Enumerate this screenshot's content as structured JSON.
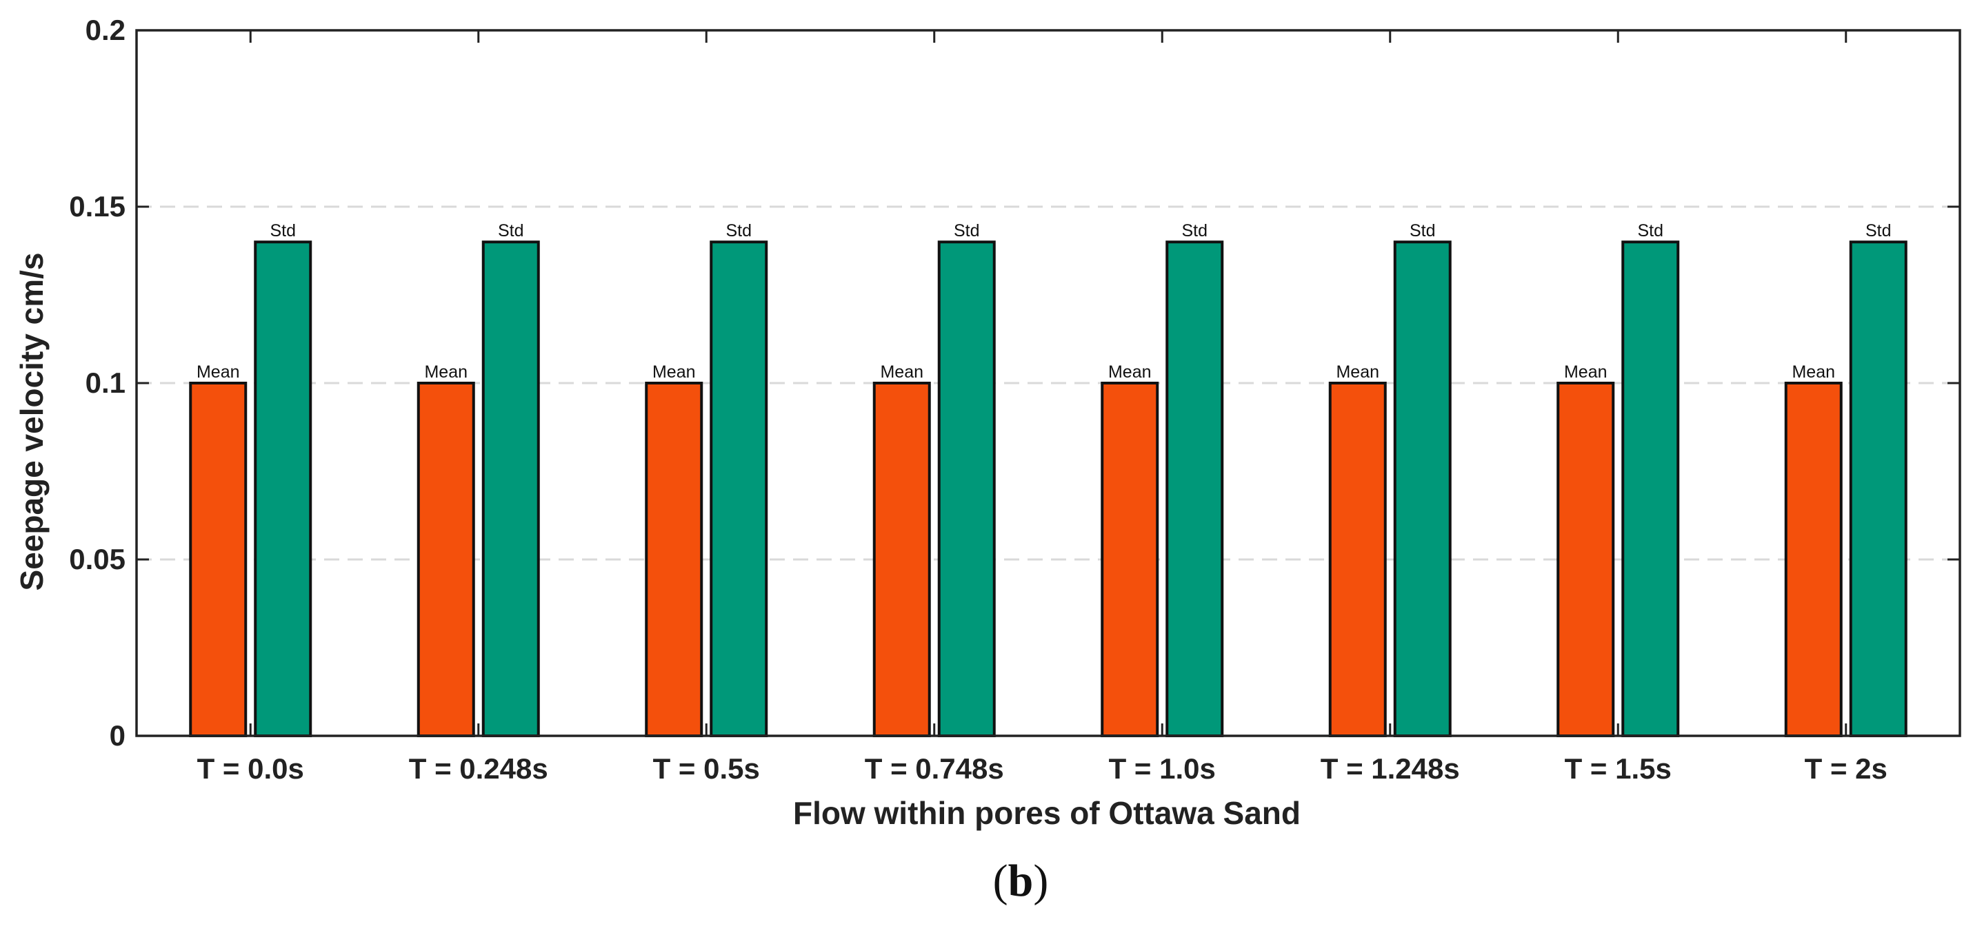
{
  "chart_data": {
    "type": "bar",
    "title": "",
    "xlabel": "Flow within pores of Ottawa Sand",
    "ylabel": "Seepage velocity cm/s",
    "ylim": [
      0,
      0.2
    ],
    "yticks": [
      0,
      0.05,
      0.1,
      0.15,
      0.2
    ],
    "ytick_labels": [
      "0",
      "0.05",
      "0.1",
      "0.15",
      "0.2"
    ],
    "grid": "horizontal dashed",
    "legend": "none",
    "categories": [
      "T = 0.0s",
      "T = 0.248s",
      "T = 0.5s",
      "T = 0.748s",
      "T = 1.0s",
      "T = 1.248s",
      "T = 1.5s",
      "T = 2s"
    ],
    "series": [
      {
        "name": "Mean",
        "color": "#f4500c",
        "values": [
          0.1,
          0.1,
          0.1,
          0.1,
          0.1,
          0.1,
          0.1,
          0.1
        ]
      },
      {
        "name": "Std",
        "color": "#009879",
        "values": [
          0.14,
          0.14,
          0.14,
          0.14,
          0.14,
          0.14,
          0.14,
          0.14
        ]
      }
    ],
    "bar_labels": [
      "Mean",
      "Std"
    ]
  },
  "figure": {
    "subfigure_label_open": "(",
    "subfigure_label_letter": "b",
    "subfigure_label_close": ")"
  }
}
